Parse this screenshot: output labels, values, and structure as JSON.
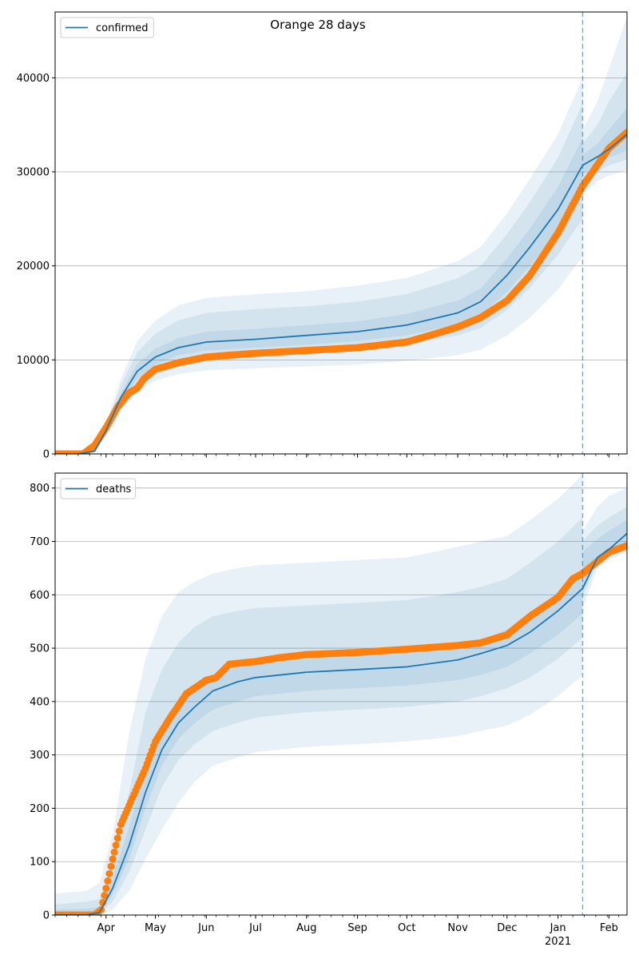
{
  "figure_title": "Orange 28 days",
  "colors": {
    "line": "#1f77b4",
    "observed": "#ff7f0e",
    "band": "#1f77b4",
    "grid": "#b0b0b0",
    "forecast_marker": "#1f77b4"
  },
  "x_axis": {
    "start": "2020-03-01",
    "end": "2021-02-12",
    "month_ticks": [
      {
        "date": "2020-04-01",
        "label": "Apr"
      },
      {
        "date": "2020-05-01",
        "label": "May"
      },
      {
        "date": "2020-06-01",
        "label": "Jun"
      },
      {
        "date": "2020-07-01",
        "label": "Jul"
      },
      {
        "date": "2020-08-01",
        "label": "Aug"
      },
      {
        "date": "2020-09-01",
        "label": "Sep"
      },
      {
        "date": "2020-10-01",
        "label": "Oct"
      },
      {
        "date": "2020-11-01",
        "label": "Nov"
      },
      {
        "date": "2020-12-01",
        "label": "Dec"
      },
      {
        "date": "2021-01-01",
        "label": "Jan"
      },
      {
        "date": "2021-02-01",
        "label": "Feb"
      }
    ],
    "year_label": {
      "date": "2021-01-01",
      "label": "2021"
    },
    "forecast_start": "2021-01-16"
  },
  "chart_data": [
    {
      "type": "line",
      "legend": "confirmed",
      "legend_position": "upper-left",
      "grid_y": true,
      "ylim": [
        0,
        47000
      ],
      "y_ticks": [
        0,
        10000,
        20000,
        30000,
        40000
      ],
      "model": {
        "dates": [
          "2020-03-01",
          "2020-03-15",
          "2020-03-25",
          "2020-04-01",
          "2020-04-10",
          "2020-04-20",
          "2020-05-01",
          "2020-05-15",
          "2020-06-01",
          "2020-07-01",
          "2020-08-01",
          "2020-09-01",
          "2020-10-01",
          "2020-11-01",
          "2020-11-15",
          "2020-12-01",
          "2020-12-15",
          "2021-01-01",
          "2021-01-16"
        ],
        "values": [
          0,
          0,
          300,
          2500,
          6000,
          8800,
          10300,
          11300,
          11900,
          12200,
          12600,
          13000,
          13700,
          15000,
          16200,
          19000,
          22000,
          26000,
          30700
        ],
        "bands": [
          {
            "lower": [
              0,
              0,
              150,
              1800,
              4600,
              6600,
              7800,
              8500,
              8900,
              9100,
              9300,
              9500,
              9900,
              10500,
              11100,
              12600,
              14500,
              17500,
              21000
            ],
            "upper": [
              0,
              0,
              500,
              3200,
              8000,
              12000,
              14200,
              15800,
              16600,
              17000,
              17300,
              17900,
              18700,
              20500,
              22000,
              25600,
              29300,
              34000,
              40000
            ]
          },
          {
            "lower": [
              0,
              0,
              200,
              2000,
              5000,
              7300,
              8700,
              9600,
              10100,
              10400,
              10700,
              11000,
              11600,
              12600,
              13400,
              15300,
              17700,
              21200,
              25000
            ],
            "upper": [
              0,
              0,
              400,
              2900,
              7300,
              10800,
              12800,
              14200,
              15000,
              15400,
              15700,
              16200,
              17000,
              18700,
              20000,
              23400,
              26800,
              31500,
              37300
            ]
          },
          {
            "lower": [
              0,
              0,
              250,
              2200,
              5500,
              8000,
              9500,
              10500,
              11000,
              11300,
              11600,
              12000,
              12600,
              13800,
              14800,
              17200,
              20000,
              23800,
              28200
            ],
            "upper": [
              0,
              0,
              350,
              2700,
              6500,
              9600,
              11200,
              12300,
              13000,
              13300,
              13700,
              14100,
              14900,
              16300,
              17600,
              20800,
              24000,
              28400,
              33600
            ]
          }
        ]
      },
      "forecast": {
        "dates": [
          "2021-01-16",
          "2021-01-25",
          "2021-02-01",
          "2021-02-12"
        ],
        "values": [
          30700,
          31600,
          32400,
          34000
        ],
        "bands": [
          {
            "lower": [
              27500,
              29000,
              29600,
              30200
            ],
            "upper": [
              34500,
              37500,
              41000,
              46500
            ]
          },
          {
            "lower": [
              28800,
              30000,
              30700,
              31300
            ],
            "upper": [
              33000,
              35000,
              37500,
              40500
            ]
          },
          {
            "lower": [
              29800,
              30800,
              31500,
              32300
            ],
            "upper": [
              31800,
              33000,
              34500,
              36800
            ]
          }
        ]
      },
      "observed": {
        "dates": [
          "2020-03-01",
          "2020-03-18",
          "2020-03-25",
          "2020-04-01",
          "2020-04-08",
          "2020-04-15",
          "2020-04-20",
          "2020-04-24",
          "2020-05-01",
          "2020-05-15",
          "2020-06-01",
          "2020-06-15",
          "2020-07-01",
          "2020-08-01",
          "2020-09-01",
          "2020-10-01",
          "2020-10-15",
          "2020-11-01",
          "2020-11-15",
          "2020-12-01",
          "2020-12-15",
          "2021-01-01",
          "2021-01-16",
          "2021-02-01",
          "2021-02-12"
        ],
        "values": [
          0,
          0,
          900,
          2800,
          5000,
          6500,
          7000,
          8000,
          9000,
          9700,
          10300,
          10500,
          10700,
          11000,
          11300,
          11900,
          12600,
          13500,
          14500,
          16300,
          19000,
          23500,
          28500,
          32500,
          34200
        ]
      }
    },
    {
      "type": "line",
      "legend": "deaths",
      "legend_position": "upper-left",
      "grid_y": true,
      "ylim": [
        0,
        828
      ],
      "y_ticks": [
        0,
        100,
        200,
        300,
        400,
        500,
        600,
        700,
        800
      ],
      "model": {
        "dates": [
          "2020-03-01",
          "2020-03-20",
          "2020-03-28",
          "2020-04-05",
          "2020-04-15",
          "2020-04-25",
          "2020-05-05",
          "2020-05-15",
          "2020-05-25",
          "2020-06-05",
          "2020-06-20",
          "2020-07-01",
          "2020-08-01",
          "2020-09-01",
          "2020-10-01",
          "2020-11-01",
          "2020-11-15",
          "2020-12-01",
          "2020-12-15",
          "2021-01-01",
          "2021-01-16"
        ],
        "values": [
          0,
          0,
          5,
          50,
          130,
          230,
          310,
          360,
          390,
          420,
          437,
          445,
          455,
          460,
          465,
          478,
          490,
          505,
          530,
          570,
          612
        ],
        "bands": [
          {
            "lower": [
              0,
              0,
              0,
              10,
              45,
              105,
              160,
              210,
              250,
              280,
              295,
              305,
              315,
              320,
              325,
              335,
              345,
              355,
              375,
              410,
              450
            ],
            "upper": [
              40,
              45,
              60,
              150,
              340,
              480,
              560,
              605,
              625,
              640,
              650,
              655,
              660,
              665,
              670,
              690,
              700,
              710,
              740,
              780,
              825
            ]
          },
          {
            "lower": [
              0,
              0,
              2,
              25,
              80,
              160,
              240,
              290,
              320,
              345,
              360,
              370,
              380,
              385,
              390,
              400,
              410,
              425,
              445,
              480,
              520
            ],
            "upper": [
              20,
              25,
              30,
              100,
              230,
              380,
              460,
              510,
              540,
              560,
              570,
              575,
              580,
              585,
              590,
              605,
              615,
              630,
              660,
              700,
              745
            ]
          },
          {
            "lower": [
              0,
              0,
              3,
              38,
              105,
              200,
              280,
              330,
              360,
              385,
              400,
              410,
              420,
              425,
              430,
              440,
              450,
              465,
              490,
              525,
              565
            ],
            "upper": [
              10,
              12,
              15,
              70,
              165,
              275,
              355,
              400,
              425,
              450,
              465,
              472,
              480,
              485,
              490,
              505,
              515,
              535,
              565,
              605,
              650
            ]
          }
        ]
      },
      "forecast": {
        "dates": [
          "2021-01-16",
          "2021-01-25",
          "2021-02-01",
          "2021-02-12"
        ],
        "values": [
          612,
          670,
          685,
          715
        ],
        "bands": [
          {
            "lower": [
              575,
              650,
              665,
              680
            ],
            "upper": [
              720,
              765,
              785,
              800
            ]
          },
          {
            "lower": [
              595,
              660,
              672,
              690
            ],
            "upper": [
              700,
              730,
              745,
              765
            ]
          },
          {
            "lower": [
              605,
              665,
              678,
              700
            ],
            "upper": [
              680,
              705,
              720,
              740
            ]
          }
        ]
      },
      "observed": {
        "dates": [
          "2020-03-01",
          "2020-03-25",
          "2020-03-29",
          "2020-04-01",
          "2020-04-05",
          "2020-04-10",
          "2020-04-15",
          "2020-04-20",
          "2020-04-25",
          "2020-05-01",
          "2020-05-10",
          "2020-05-20",
          "2020-06-01",
          "2020-06-07",
          "2020-06-15",
          "2020-07-01",
          "2020-07-15",
          "2020-08-01",
          "2020-09-01",
          "2020-10-01",
          "2020-11-01",
          "2020-11-15",
          "2020-12-01",
          "2020-12-15",
          "2021-01-01",
          "2021-01-10",
          "2021-01-16",
          "2021-02-01",
          "2021-02-12"
        ],
        "values": [
          0,
          0,
          10,
          50,
          105,
          170,
          205,
          240,
          275,
          325,
          370,
          415,
          440,
          445,
          470,
          475,
          482,
          488,
          492,
          498,
          505,
          510,
          525,
          560,
          595,
          630,
          640,
          680,
          692
        ]
      }
    }
  ]
}
